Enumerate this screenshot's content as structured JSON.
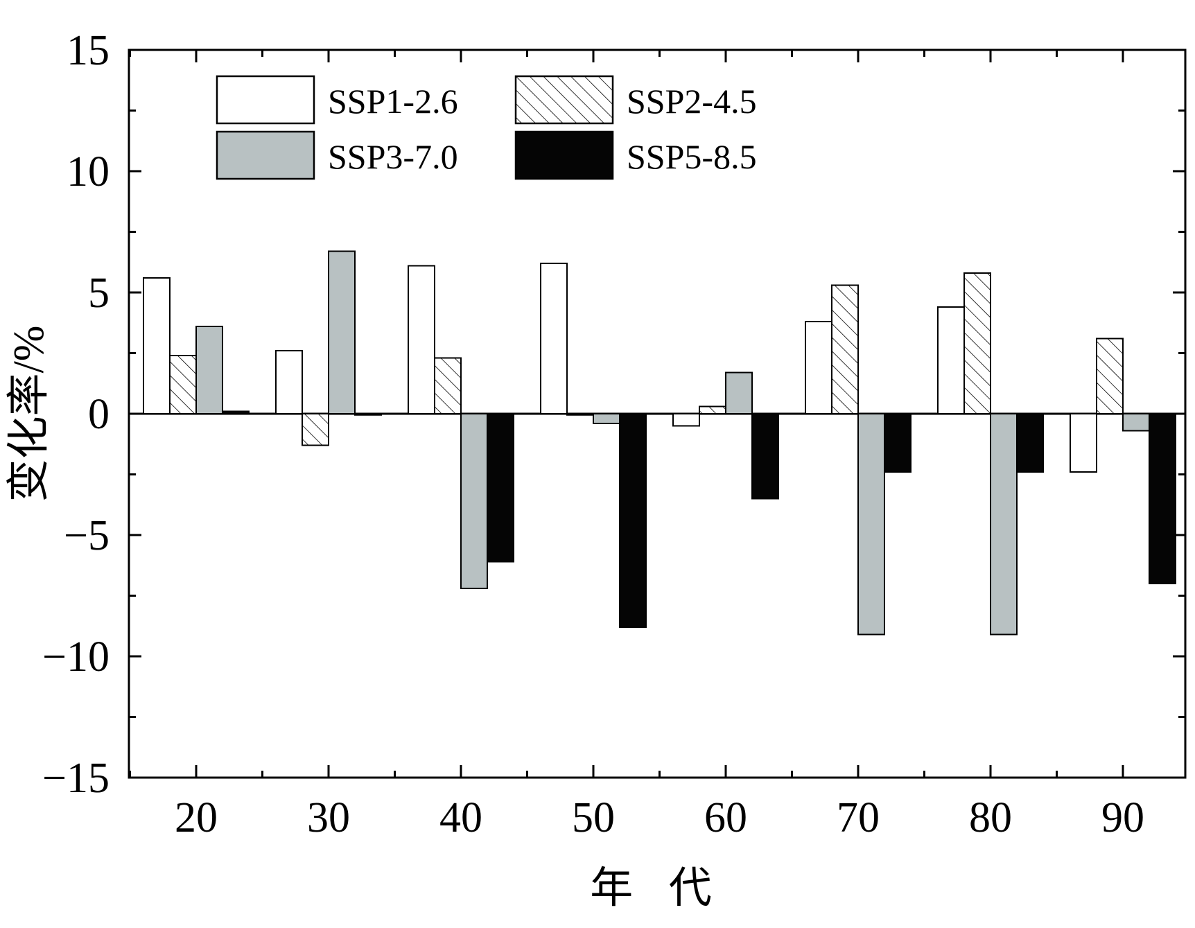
{
  "chart_data": {
    "type": "bar",
    "title": "",
    "xlabel": "年 代",
    "ylabel": "变化率/%",
    "categories": [
      "20",
      "30",
      "40",
      "50",
      "60",
      "70",
      "80",
      "90"
    ],
    "ylim": [
      -15,
      15
    ],
    "yticks": [
      -15,
      -10,
      -5,
      0,
      5,
      10,
      15
    ],
    "ytick_labels": [
      "−15",
      "−10",
      "−5",
      "0",
      "5",
      "10",
      "15"
    ],
    "grid": false,
    "legend_position": "top-left",
    "series": [
      {
        "name": "SSP1-2.6",
        "fill": "#ffffff",
        "pattern": "none",
        "values": [
          5.6,
          2.6,
          6.1,
          6.2,
          -0.5,
          3.8,
          4.4,
          -2.4
        ]
      },
      {
        "name": "SSP2-4.5",
        "fill": "#ffffff",
        "pattern": "hatch",
        "values": [
          2.4,
          -1.3,
          2.3,
          -0.05,
          0.3,
          5.3,
          5.8,
          3.1
        ]
      },
      {
        "name": "SSP3-7.0",
        "fill": "#b8c1c2",
        "pattern": "none",
        "values": [
          3.6,
          6.7,
          -7.2,
          -0.4,
          1.7,
          -9.1,
          -9.1,
          -0.7
        ]
      },
      {
        "name": "SSP5-8.5",
        "fill": "#050505",
        "pattern": "none",
        "values": [
          0.1,
          -0.05,
          -6.1,
          -8.8,
          -3.5,
          -2.4,
          -2.4,
          -7.0
        ]
      }
    ]
  }
}
